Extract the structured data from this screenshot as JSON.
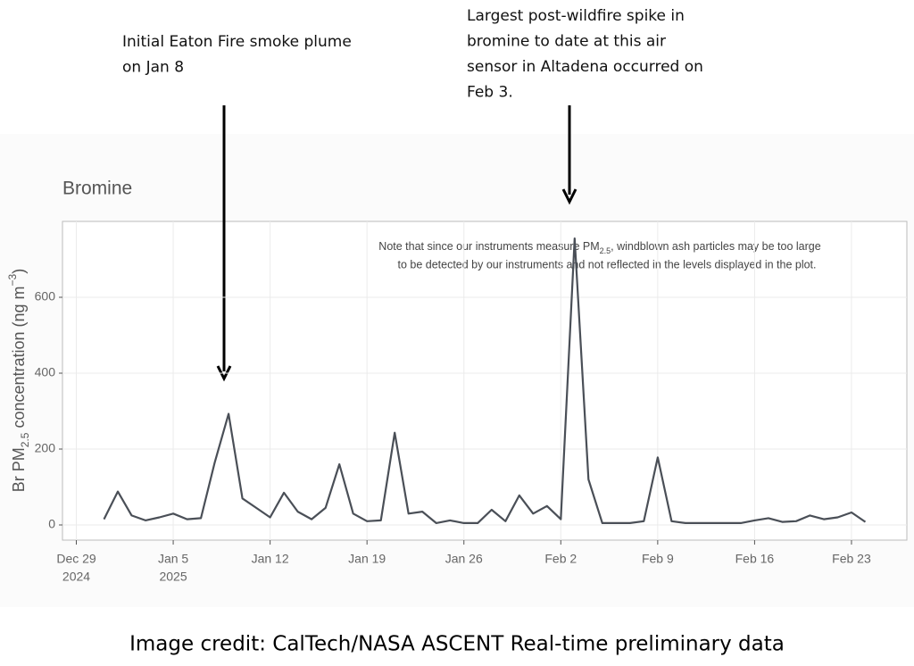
{
  "chart_data": {
    "type": "line",
    "title": "Bromine",
    "y_label": [
      "Br PM",
      "2.5",
      " concentration (ng m",
      "−3",
      ")"
    ],
    "note": [
      "Note that since our instruments measure PM",
      "2.5",
      ", windblown ash particles may be too large",
      "to be detected by our instruments and not reflected in the levels displayed in the plot."
    ],
    "annotations": [
      [
        "Initial Eaton Fire smoke plume",
        "on Jan 8"
      ],
      [
        "Largest post-wildfire spike in",
        "bromine to date at this air",
        "sensor in Altadena occurred on",
        "Feb 3."
      ]
    ],
    "credit": "Image credit: CalTech/NASA ASCENT Real-time preliminary data",
    "color": "#4a4f57",
    "x": [
      "2024-12-31",
      "2025-01-01",
      "2025-01-02",
      "2025-01-03",
      "2025-01-04",
      "2025-01-05",
      "2025-01-06",
      "2025-01-07",
      "2025-01-08",
      "2025-01-09",
      "2025-01-10",
      "2025-01-11",
      "2025-01-12",
      "2025-01-13",
      "2025-01-14",
      "2025-01-15",
      "2025-01-16",
      "2025-01-17",
      "2025-01-18",
      "2025-01-19",
      "2025-01-20",
      "2025-01-21",
      "2025-01-22",
      "2025-01-23",
      "2025-01-24",
      "2025-01-25",
      "2025-01-26",
      "2025-01-27",
      "2025-01-28",
      "2025-01-29",
      "2025-01-30",
      "2025-01-31",
      "2025-02-01",
      "2025-02-02",
      "2025-02-03",
      "2025-02-04",
      "2025-02-05",
      "2025-02-06",
      "2025-02-07",
      "2025-02-08",
      "2025-02-09",
      "2025-02-10",
      "2025-02-11",
      "2025-02-12",
      "2025-02-13",
      "2025-02-14",
      "2025-02-15",
      "2025-02-16",
      "2025-02-17",
      "2025-02-18",
      "2025-02-19",
      "2025-02-20",
      "2025-02-21",
      "2025-02-22",
      "2025-02-23",
      "2025-02-24"
    ],
    "values": [
      15,
      88,
      25,
      12,
      20,
      30,
      15,
      18,
      165,
      293,
      70,
      45,
      20,
      85,
      35,
      15,
      45,
      160,
      30,
      10,
      12,
      243,
      30,
      35,
      5,
      12,
      5,
      5,
      40,
      10,
      78,
      30,
      50,
      15,
      755,
      120,
      5,
      5,
      5,
      10,
      178,
      10,
      5,
      5,
      5,
      5,
      5,
      12,
      18,
      8,
      10,
      25,
      15,
      20,
      33,
      8
    ],
    "xlim": [
      "2024-12-28",
      "2025-02-27"
    ],
    "xticks": [
      {
        "value": "2024-12-29",
        "label": "Dec 29",
        "year": "2024"
      },
      {
        "value": "2025-01-05",
        "label": "Jan 5",
        "year": "2025"
      },
      {
        "value": "2025-01-12",
        "label": "Jan 12"
      },
      {
        "value": "2025-01-19",
        "label": "Jan 19"
      },
      {
        "value": "2025-01-26",
        "label": "Jan 26"
      },
      {
        "value": "2025-02-02",
        "label": "Feb 2"
      },
      {
        "value": "2025-02-09",
        "label": "Feb 9"
      },
      {
        "value": "2025-02-16",
        "label": "Feb 16"
      },
      {
        "value": "2025-02-23",
        "label": "Feb 23"
      }
    ],
    "ylim": [
      -40,
      800
    ],
    "yticks": [
      0,
      200,
      400,
      600
    ],
    "grid": true
  }
}
